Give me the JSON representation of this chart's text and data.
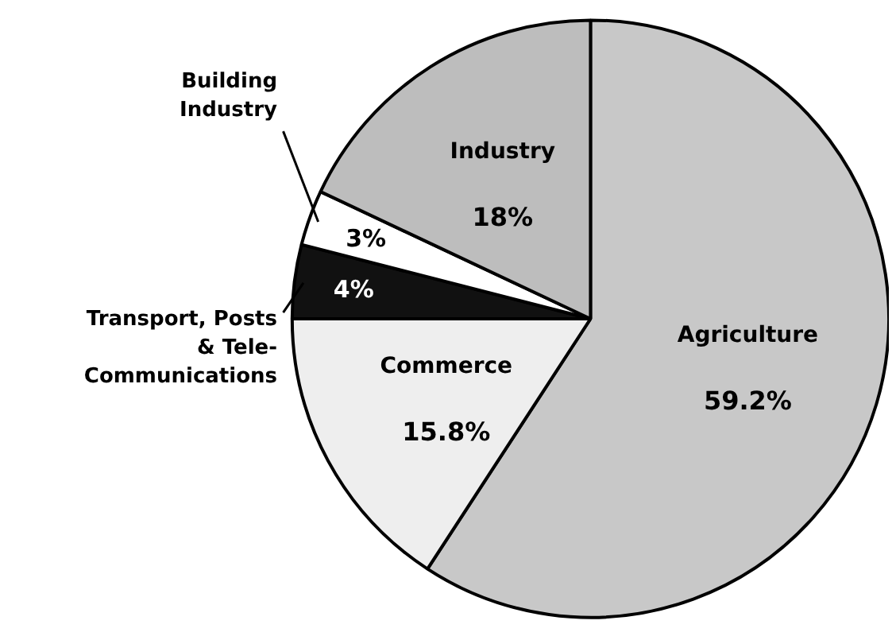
{
  "chart_data": {
    "type": "pie",
    "categories": [
      "Agriculture",
      "Commerce",
      "Transport, Posts & Tele-Communications",
      "Building Industry",
      "Industry"
    ],
    "values": [
      59.2,
      15.8,
      4,
      3,
      18
    ],
    "colors": [
      "#c8c8c8",
      "#eeeeee",
      "#111111",
      "#ffffff",
      "#bdbdbd"
    ],
    "value_labels": [
      "59.2%",
      "15.8%",
      "4%",
      "3%",
      "18%"
    ]
  }
}
